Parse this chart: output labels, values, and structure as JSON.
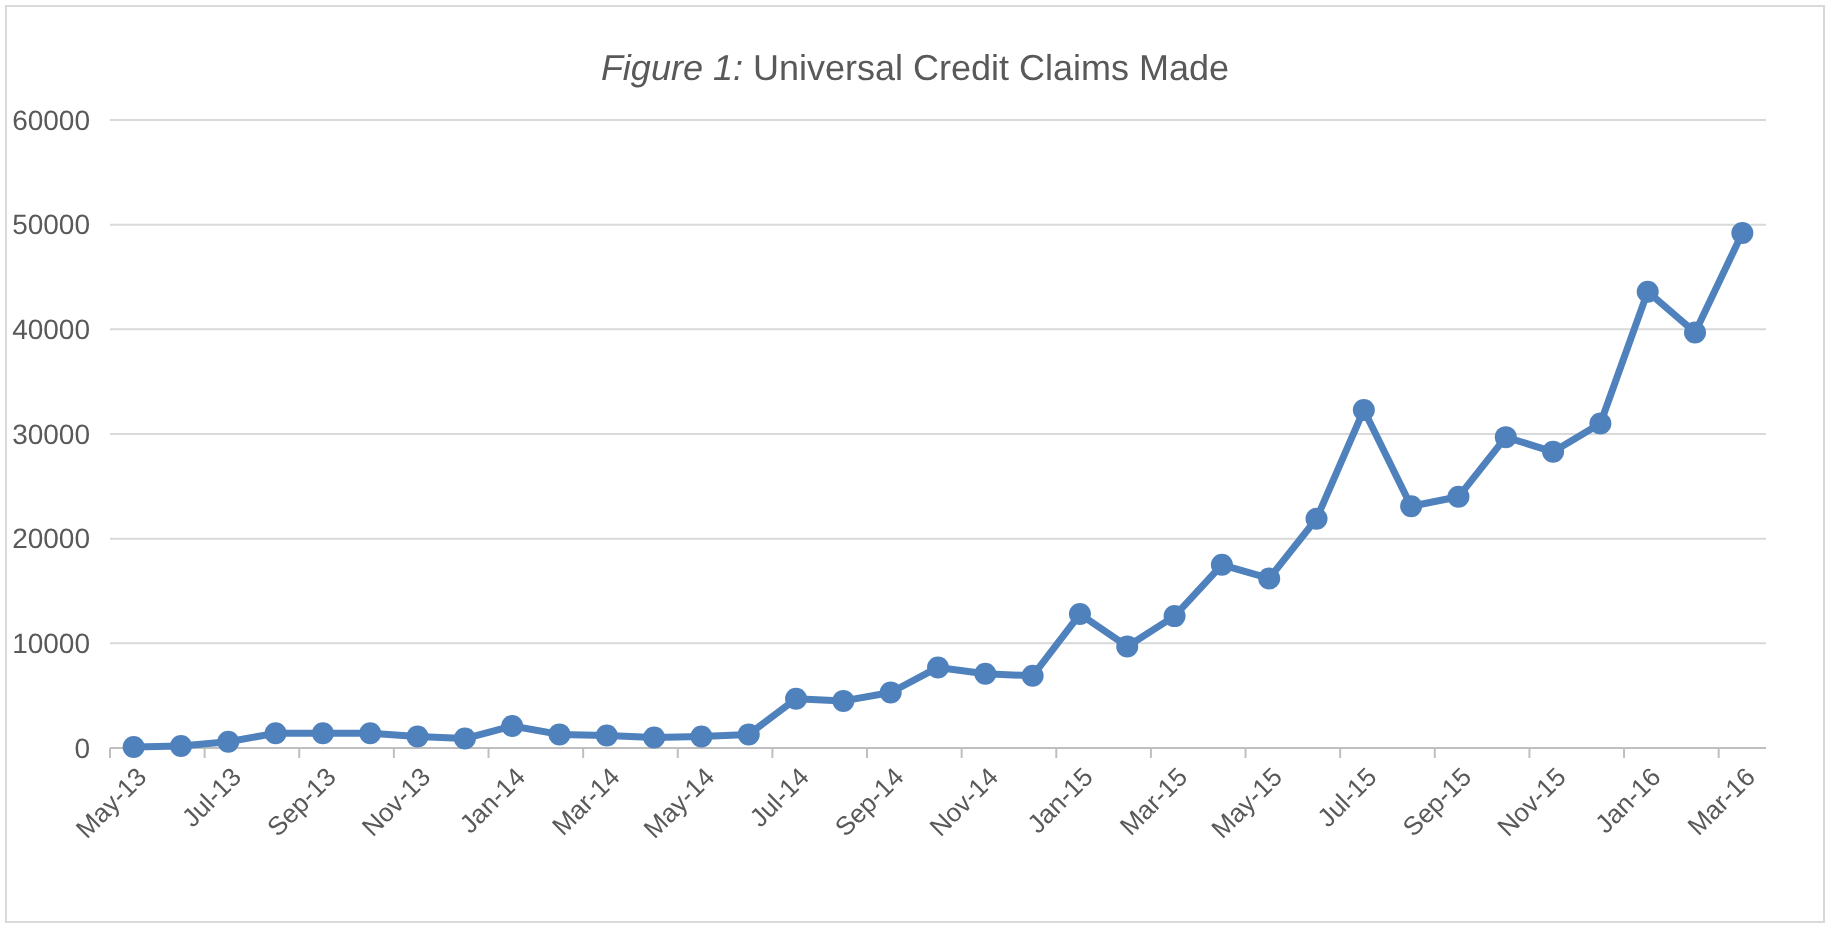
{
  "chart_data": {
    "type": "line",
    "title": "Figure 1: Universal Credit Claims Made",
    "categories": [
      "May-13",
      null,
      "Jul-13",
      null,
      "Sep-13",
      null,
      "Nov-13",
      null,
      "Jan-14",
      null,
      "Mar-14",
      null,
      "May-14",
      null,
      "Jul-14",
      null,
      "Sep-14",
      null,
      "Nov-14",
      null,
      "Jan-15",
      null,
      "Mar-15",
      null,
      "May-15",
      null,
      "Jul-15",
      null,
      "Sep-15",
      null,
      "Nov-15",
      null,
      "Jan-16",
      null,
      "Mar-16"
    ],
    "series": [
      {
        "color": "#4f81bd",
        "values": [
          100,
          200,
          600,
          1400,
          1400,
          1400,
          1100,
          900,
          2100,
          1300,
          1200,
          1000,
          1100,
          1300,
          4700,
          4500,
          5300,
          7700,
          7100,
          6900,
          12800,
          9700,
          12600,
          17500,
          16200,
          21900,
          32300,
          23100,
          24000,
          29700,
          28300,
          31000,
          43600,
          39700,
          49200
        ]
      }
    ],
    "ylim": [
      0,
      60000
    ],
    "yticks": [
      0,
      10000,
      20000,
      30000,
      40000,
      50000,
      60000
    ],
    "grid": "y",
    "marker": "circle",
    "line_style": "solid"
  }
}
